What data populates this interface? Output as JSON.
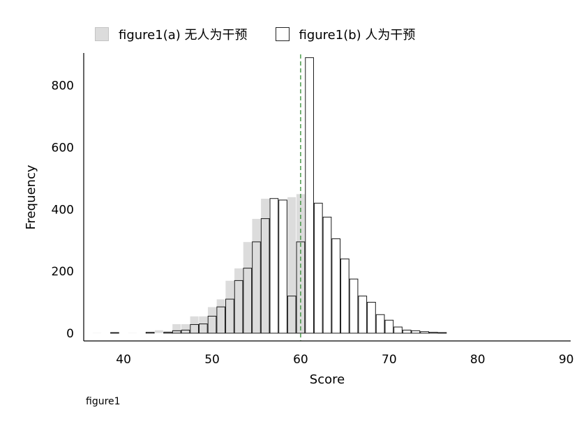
{
  "legend": {
    "a_label": "figure1(a) 无人为干预",
    "b_label": "figure1(b) 人为干预"
  },
  "caption": "figure1",
  "chart_data": {
    "type": "bar",
    "xlabel": "Score",
    "ylabel": "Frequency",
    "xlim": [
      35.5,
      90.5
    ],
    "ylim": [
      -25,
      905
    ],
    "xticks": [
      40,
      50,
      60,
      70,
      80,
      90
    ],
    "yticks": [
      0,
      200,
      400,
      600,
      800
    ],
    "bin_width": 1,
    "reference_line": {
      "x": 60,
      "style": "dashed",
      "color": "#2e8b2e"
    },
    "series": [
      {
        "name": "figure1(a) 无人为干预",
        "color": "#dcdcdc",
        "bins": [
          {
            "x": 37,
            "y": 2
          },
          {
            "x": 39,
            "y": 1
          },
          {
            "x": 41,
            "y": 2
          },
          {
            "x": 43,
            "y": 3
          },
          {
            "x": 44,
            "y": 10
          },
          {
            "x": 45,
            "y": 7
          },
          {
            "x": 46,
            "y": 30
          },
          {
            "x": 47,
            "y": 30
          },
          {
            "x": 48,
            "y": 55
          },
          {
            "x": 49,
            "y": 55
          },
          {
            "x": 50,
            "y": 85
          },
          {
            "x": 51,
            "y": 110
          },
          {
            "x": 52,
            "y": 170
          },
          {
            "x": 53,
            "y": 210
          },
          {
            "x": 54,
            "y": 295
          },
          {
            "x": 55,
            "y": 370
          },
          {
            "x": 56,
            "y": 435
          },
          {
            "x": 57,
            "y": 420
          },
          {
            "x": 58,
            "y": 425
          },
          {
            "x": 59,
            "y": 440
          },
          {
            "x": 60,
            "y": 450
          },
          {
            "x": 61,
            "y": 420
          },
          {
            "x": 62,
            "y": 375
          },
          {
            "x": 63,
            "y": 305
          },
          {
            "x": 64,
            "y": 240
          },
          {
            "x": 65,
            "y": 180
          },
          {
            "x": 66,
            "y": 120
          },
          {
            "x": 67,
            "y": 100
          },
          {
            "x": 68,
            "y": 60
          },
          {
            "x": 69,
            "y": 40
          },
          {
            "x": 70,
            "y": 20
          },
          {
            "x": 71,
            "y": 8
          },
          {
            "x": 72,
            "y": 4
          },
          {
            "x": 73,
            "y": 2
          }
        ]
      },
      {
        "name": "figure1(b) 人为干预",
        "color": "#ffffff",
        "bins": [
          {
            "x": 39,
            "y": 2
          },
          {
            "x": 43,
            "y": 3
          },
          {
            "x": 45,
            "y": 3
          },
          {
            "x": 46,
            "y": 8
          },
          {
            "x": 47,
            "y": 10
          },
          {
            "x": 48,
            "y": 28
          },
          {
            "x": 49,
            "y": 30
          },
          {
            "x": 50,
            "y": 55
          },
          {
            "x": 51,
            "y": 85
          },
          {
            "x": 52,
            "y": 110
          },
          {
            "x": 53,
            "y": 170
          },
          {
            "x": 54,
            "y": 210
          },
          {
            "x": 55,
            "y": 295
          },
          {
            "x": 56,
            "y": 370
          },
          {
            "x": 57,
            "y": 435
          },
          {
            "x": 58,
            "y": 430
          },
          {
            "x": 59,
            "y": 120
          },
          {
            "x": 60,
            "y": 295
          },
          {
            "x": 61,
            "y": 890
          },
          {
            "x": 62,
            "y": 420
          },
          {
            "x": 63,
            "y": 375
          },
          {
            "x": 64,
            "y": 305
          },
          {
            "x": 65,
            "y": 240
          },
          {
            "x": 66,
            "y": 175
          },
          {
            "x": 67,
            "y": 120
          },
          {
            "x": 68,
            "y": 100
          },
          {
            "x": 69,
            "y": 60
          },
          {
            "x": 70,
            "y": 42
          },
          {
            "x": 71,
            "y": 20
          },
          {
            "x": 72,
            "y": 10
          },
          {
            "x": 73,
            "y": 8
          },
          {
            "x": 74,
            "y": 5
          },
          {
            "x": 75,
            "y": 3
          },
          {
            "x": 76,
            "y": 2
          }
        ]
      }
    ]
  }
}
